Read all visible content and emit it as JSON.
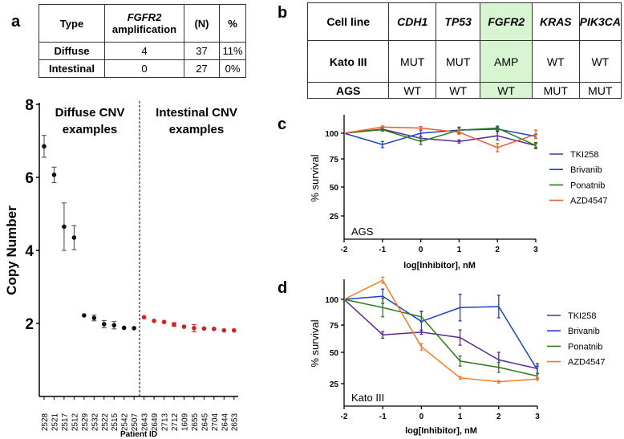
{
  "panel_labels": {
    "a": "a",
    "b": "b",
    "c": "c",
    "d": "d"
  },
  "table_a": {
    "headers": [
      "Type",
      "FGFR2",
      "amplification",
      "(N)",
      "%"
    ],
    "rows": [
      [
        "Diffuse",
        "4",
        "37",
        "11%"
      ],
      [
        "Intestinal",
        "0",
        "27",
        "0%"
      ]
    ]
  },
  "table_b": {
    "headers": [
      "Cell line",
      "CDH1",
      "TP53",
      "FGFR2",
      "KRAS",
      "PIK3CA"
    ],
    "rows": [
      [
        "Kato III",
        "MUT",
        "MUT",
        "AMP",
        "WT",
        "WT"
      ],
      [
        "AGS",
        "WT",
        "WT",
        "WT",
        "MUT",
        "MUT"
      ]
    ],
    "highlight_color": "#d6f5d0"
  },
  "chart_data": [
    {
      "type": "scatter",
      "ylabel": "Copy Number",
      "xlabel": "Patient ID",
      "ylim": [
        0,
        8
      ],
      "yticks": [
        2,
        4,
        6,
        8
      ],
      "group_labels": [
        "Diffuse CNV",
        "examples",
        "Intestinal CNV",
        "examples"
      ],
      "series": [
        {
          "color": "#111111",
          "x": [
            "2528",
            "2521",
            "2517",
            "2512",
            "2529",
            "2532",
            "2522",
            "2515",
            "2542",
            "2507"
          ],
          "values": [
            6.85,
            6.07,
            4.65,
            4.35,
            2.22,
            2.15,
            1.98,
            1.95,
            1.88,
            1.87
          ],
          "errors": [
            0.3,
            0.21,
            0.65,
            0.33,
            0.03,
            0.08,
            0.1,
            0.1,
            0.03,
            0.03
          ]
        },
        {
          "color": "#d91c1c",
          "x": [
            "2643",
            "2649",
            "2713",
            "2712",
            "1609",
            "2655",
            "2645",
            "2704",
            "2644",
            "2653"
          ],
          "values": [
            2.17,
            2.07,
            2.04,
            1.97,
            1.91,
            1.87,
            1.86,
            1.85,
            1.81,
            1.81
          ],
          "errors": [
            0.03,
            0.03,
            0.03,
            0.05,
            0.03,
            0.1,
            0.03,
            0.03,
            0.03,
            0.03
          ]
        }
      ]
    },
    {
      "type": "line",
      "annotation": "AGS",
      "xlabel": "log[Inhibitor], nM",
      "ylabel": "% survival",
      "x": [
        -2,
        -1,
        0,
        1,
        2,
        3
      ],
      "yticks": [
        25,
        50,
        75,
        100
      ],
      "legend": "right",
      "series": [
        {
          "name": "TKI258",
          "color": "#5a2a91",
          "values": [
            100,
            104,
            95,
            92,
            97.5,
            88
          ],
          "errors": [
            0,
            1.5,
            2,
            1.5,
            4,
            2
          ]
        },
        {
          "name": "Brivanib",
          "color": "#1f3fc8",
          "values": [
            100,
            89,
            100,
            103,
            104,
            97
          ],
          "errors": [
            0,
            3,
            3,
            2,
            2,
            2
          ]
        },
        {
          "name": "Ponatnib",
          "color": "#2f7a1c",
          "values": [
            100,
            103.5,
            92,
            103,
            105,
            88
          ],
          "errors": [
            0,
            1.5,
            3,
            3,
            2,
            3
          ]
        },
        {
          "name": "AZD4547",
          "color": "#f05a28",
          "values": [
            100,
            106,
            105,
            101,
            86,
            99
          ],
          "errors": [
            0,
            1,
            1.5,
            2,
            4,
            4
          ]
        }
      ]
    },
    {
      "type": "line",
      "annotation": "Kato III",
      "xlabel": "log[Inhibitor], nM",
      "ylabel": "% survival",
      "x": [
        -2,
        -1,
        0,
        1,
        2,
        3
      ],
      "yticks": [
        25,
        50,
        75,
        100
      ],
      "legend": "right",
      "series": [
        {
          "name": "TKI258",
          "color": "#5a2a91",
          "values": [
            100,
            66,
            68.5,
            63.5,
            44,
            37
          ],
          "errors": [
            0,
            3,
            2,
            7,
            6,
            4
          ]
        },
        {
          "name": "Brivanib",
          "color": "#1f3fc8",
          "values": [
            100,
            103,
            78.5,
            92,
            93,
            36
          ],
          "errors": [
            0,
            7,
            10,
            13,
            11,
            3
          ]
        },
        {
          "name": "Ponatnib",
          "color": "#2f7a1c",
          "values": [
            100,
            92,
            83,
            43,
            38,
            31
          ],
          "errors": [
            0,
            9,
            5,
            4,
            4,
            2
          ]
        },
        {
          "name": "AZD4547",
          "color": "#f57a23",
          "values": [
            100,
            118.6,
            55,
            29.6,
            26.5,
            28.7
          ],
          "errors": [
            0,
            3,
            3,
            1,
            1,
            1
          ]
        }
      ]
    }
  ]
}
